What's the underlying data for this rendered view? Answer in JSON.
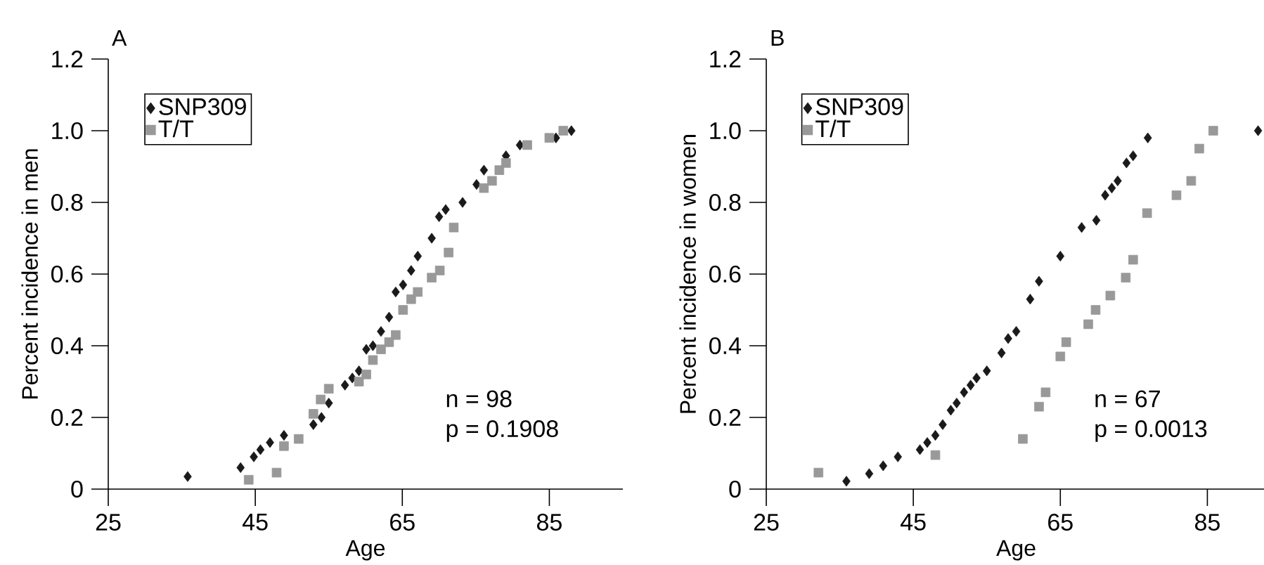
{
  "chart_data": [
    {
      "type": "scatter",
      "title": "A",
      "xlabel": "Age",
      "ylabel": "Percent incidence in men",
      "legend": "top left",
      "grid": false,
      "xlim": [
        25,
        95
      ],
      "xticks": [
        25,
        45,
        65,
        85
      ],
      "ylim": [
        0,
        1.2
      ],
      "yticks": [
        0,
        0.2,
        0.4,
        0.6,
        0.8,
        {
          "value": 1,
          "label": "1.0"
        },
        1.2
      ],
      "annotations": [
        "n = 98",
        "p = 0.1908"
      ],
      "series": [
        {
          "name": "SNP309",
          "color": "#1a1a1a",
          "marker": "diamond",
          "x": [
            35.8,
            43.0,
            44.8,
            45.7,
            47.0,
            48.9,
            52.9,
            54.0,
            55.0,
            57.2,
            58.2,
            59.1,
            60.1,
            61.0,
            62.1,
            63.2,
            64.1,
            65.1,
            66.2,
            67.1,
            69.0,
            70.0,
            70.9,
            73.2,
            75.1,
            76.1,
            79.1,
            81.0,
            85.9,
            88.0
          ],
          "values": [
            0.035,
            0.06,
            0.09,
            0.11,
            0.13,
            0.15,
            0.18,
            0.2,
            0.24,
            0.29,
            0.31,
            0.33,
            0.39,
            0.4,
            0.44,
            0.48,
            0.55,
            0.57,
            0.61,
            0.65,
            0.7,
            0.76,
            0.78,
            0.8,
            0.85,
            0.89,
            0.93,
            0.96,
            0.98,
            1.0
          ]
        },
        {
          "name": "T/T",
          "color": "#999999",
          "marker": "square",
          "x": [
            44.1,
            47.9,
            48.9,
            50.9,
            52.9,
            53.9,
            55.0,
            59.1,
            60.1,
            61.0,
            62.1,
            63.2,
            64.1,
            65.1,
            66.2,
            67.1,
            69.0,
            70.1,
            71.3,
            72.0,
            76.1,
            77.2,
            78.2,
            79.1,
            82.0,
            85.0,
            86.9
          ],
          "values": [
            0.026,
            0.046,
            0.12,
            0.14,
            0.21,
            0.25,
            0.28,
            0.3,
            0.32,
            0.36,
            0.39,
            0.41,
            0.43,
            0.5,
            0.53,
            0.55,
            0.59,
            0.61,
            0.66,
            0.73,
            0.84,
            0.86,
            0.89,
            0.91,
            0.96,
            0.98,
            1.0
          ]
        }
      ]
    },
    {
      "type": "scatter",
      "title": "B",
      "xlabel": "Age",
      "ylabel": "Percent incidence in women",
      "legend": "top left",
      "grid": false,
      "xlim": [
        25,
        93
      ],
      "xticks": [
        25,
        45,
        65,
        85
      ],
      "ylim": [
        0,
        1.2
      ],
      "yticks": [
        0,
        0.2,
        0.4,
        0.6,
        0.8,
        {
          "value": 1,
          "label": "1.0"
        },
        1.2
      ],
      "annotations": [
        "n = 67",
        "p = 0.0013"
      ],
      "series": [
        {
          "name": "SNP309",
          "color": "#1a1a1a",
          "marker": "diamond",
          "x": [
            35.9,
            39.0,
            40.9,
            42.9,
            45.9,
            46.9,
            48.0,
            49.0,
            50.1,
            50.9,
            51.9,
            52.8,
            53.6,
            55.0,
            57.0,
            57.9,
            59.0,
            60.9,
            62.1,
            65.0,
            67.9,
            69.9,
            71.1,
            72.0,
            72.8,
            74.0,
            74.9,
            76.9,
            91.9
          ],
          "values": [
            0.022,
            0.043,
            0.065,
            0.09,
            0.11,
            0.13,
            0.15,
            0.18,
            0.22,
            0.24,
            0.27,
            0.29,
            0.31,
            0.33,
            0.38,
            0.42,
            0.44,
            0.53,
            0.58,
            0.65,
            0.73,
            0.75,
            0.82,
            0.84,
            0.86,
            0.91,
            0.93,
            0.98,
            1.0
          ]
        },
        {
          "name": "T/T",
          "color": "#999999",
          "marker": "square",
          "x": [
            32.1,
            48.0,
            59.9,
            62.1,
            63.0,
            65.0,
            65.8,
            68.8,
            69.8,
            71.8,
            73.9,
            74.9,
            76.8,
            80.8,
            82.8,
            83.9,
            85.8
          ],
          "values": [
            0.046,
            0.095,
            0.14,
            0.23,
            0.27,
            0.37,
            0.41,
            0.46,
            0.5,
            0.54,
            0.59,
            0.64,
            0.77,
            0.82,
            0.86,
            0.95,
            1.0
          ]
        }
      ]
    }
  ]
}
